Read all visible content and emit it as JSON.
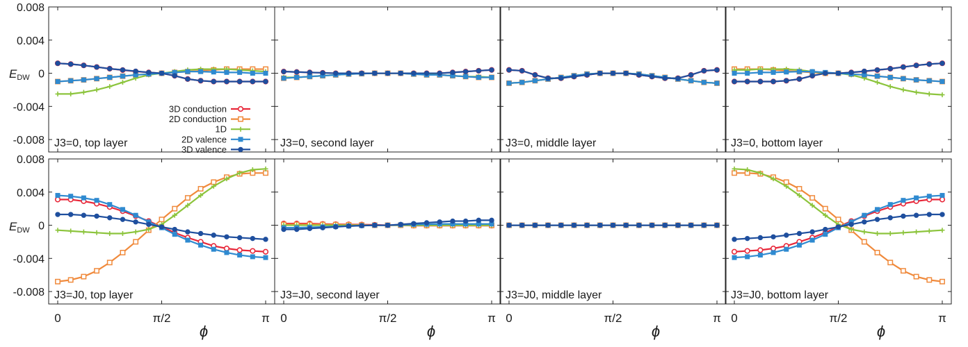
{
  "figure": {
    "ylabel_main": "E",
    "ylabel_sub": "DW",
    "phi_symbol": "ϕ",
    "legend": [
      "3D conduction",
      "2D conduction",
      "1D",
      "2D valence",
      "3D valence"
    ],
    "colors": {
      "3D conduction": "#e8283a",
      "2D conduction": "#f08a3c",
      "1D": "#8cc43c",
      "2D valence": "#2f8ad0",
      "3D valence": "#1f4f9e"
    }
  },
  "chart_data": [
    {
      "type": "line",
      "title": "J3=0, top layer",
      "xticks": [
        "0",
        "π/2",
        "π"
      ],
      "yticks": [
        "0.008",
        "0.004",
        "0",
        "-0.004",
        "-0.008"
      ],
      "xlim": [
        0,
        3.1416
      ],
      "ylim": [
        -0.0095,
        0.008
      ],
      "legend_position": "bottom-right",
      "series": [
        {
          "name": "3D conduction",
          "values": [
            0.0012,
            0.0011,
            0.00095,
            0.00075,
            0.00055,
            0.00038,
            0.00022,
            0.0001,
            0.0,
            -0.0003,
            -0.0007,
            -0.0009,
            -0.001,
            -0.001,
            -0.001,
            -0.001,
            -0.001
          ]
        },
        {
          "name": "2D conduction",
          "values": [
            -0.001,
            -0.0009,
            -0.0008,
            -0.00065,
            -0.0005,
            -0.00035,
            -0.0002,
            -0.0001,
            0.0,
            0.0001,
            0.0002,
            0.0003,
            0.0004,
            0.0005,
            0.0005,
            0.0005,
            0.0005
          ]
        },
        {
          "name": "1D",
          "values": [
            -0.0025,
            -0.0025,
            -0.0023,
            -0.002,
            -0.0016,
            -0.0011,
            -0.0006,
            -0.0002,
            0.0,
            0.0002,
            0.0004,
            0.0005,
            0.0005,
            0.0005,
            0.0004,
            0.0003,
            0.0002
          ]
        },
        {
          "name": "2D valence",
          "values": [
            -0.001,
            -0.0009,
            -0.0008,
            -0.00065,
            -0.0005,
            -0.00035,
            -0.0002,
            -0.0001,
            0.0,
            0.0001,
            0.0002,
            0.0002,
            0.00015,
            0.0001,
            0.0001,
            0.0,
            0.0
          ]
        },
        {
          "name": "3D valence",
          "values": [
            0.0012,
            0.0011,
            0.00095,
            0.00075,
            0.00055,
            0.0004,
            0.00025,
            0.0001,
            0.0,
            -0.0003,
            -0.0007,
            -0.0009,
            -0.001,
            -0.001,
            -0.001,
            -0.001,
            -0.001
          ]
        }
      ]
    },
    {
      "type": "line",
      "title": "J3=0, second layer",
      "xticks": [
        "0",
        "π/2",
        "π"
      ],
      "yticks": [],
      "xlim": [
        0,
        3.1416
      ],
      "ylim": [
        -0.0095,
        0.008
      ],
      "series": [
        {
          "name": "3D conduction",
          "values": [
            0.0002,
            0.00015,
            0.0001,
            5e-05,
            0.0,
            0.0,
            0.0,
            0.0,
            0.0,
            0.0,
            0.0,
            0.0,
            0.0,
            0.0001,
            0.0002,
            0.0003,
            0.0004
          ]
        },
        {
          "name": "2D conduction",
          "values": [
            -0.0006,
            -0.0005,
            -0.0004,
            -0.0003,
            -0.0002,
            -0.0001,
            -5e-05,
            0.0,
            0.0,
            0.0,
            -0.0001,
            -0.0002,
            -0.0002,
            -0.0003,
            -0.0004,
            -0.0005,
            -0.0005
          ]
        },
        {
          "name": "1D",
          "values": [
            -0.0005,
            -0.0005,
            -0.0004,
            -0.0003,
            -0.0002,
            -0.0001,
            -5e-05,
            0.0,
            0.0,
            0.0,
            -0.0001,
            -0.0001,
            -0.0002,
            -0.0003,
            -0.0004,
            -0.0004,
            -0.0005
          ]
        },
        {
          "name": "2D valence",
          "values": [
            -0.0006,
            -0.0005,
            -0.0004,
            -0.0003,
            -0.0002,
            -0.0001,
            -5e-05,
            0.0,
            0.0,
            0.0,
            -0.0001,
            -0.0002,
            -0.0002,
            -0.0003,
            -0.0004,
            -0.0005,
            -0.0005
          ]
        },
        {
          "name": "3D valence",
          "values": [
            0.0002,
            0.00015,
            0.0001,
            5e-05,
            0.0,
            0.0,
            0.0,
            0.0,
            0.0,
            0.0,
            0.0,
            0.0,
            0.0,
            0.0001,
            0.0002,
            0.0003,
            0.0004
          ]
        }
      ]
    },
    {
      "type": "line",
      "title": "J3=0, middle layer",
      "xticks": [
        "0",
        "π/2",
        "π"
      ],
      "yticks": [],
      "xlim": [
        0,
        3.1416
      ],
      "ylim": [
        -0.0095,
        0.008
      ],
      "series": [
        {
          "name": "3D conduction",
          "values": [
            0.0004,
            0.0003,
            -0.0002,
            -0.0006,
            -0.0006,
            -0.0004,
            -0.0002,
            0.0,
            0.0,
            0.0,
            -0.0002,
            -0.0004,
            -0.0006,
            -0.0006,
            -0.0002,
            0.0003,
            0.0004
          ]
        },
        {
          "name": "2D conduction",
          "values": [
            -0.0012,
            -0.0011,
            -0.0009,
            -0.0007,
            -0.0005,
            -0.0003,
            -0.0001,
            0.0,
            0.0,
            0.0,
            -0.0001,
            -0.0003,
            -0.0005,
            -0.0007,
            -0.0009,
            -0.0011,
            -0.0012
          ]
        },
        {
          "name": "1D",
          "values": [
            -0.0012,
            -0.0011,
            -0.0009,
            -0.0007,
            -0.0005,
            -0.0003,
            -0.0001,
            0.0,
            0.0,
            0.0,
            -0.0001,
            -0.0003,
            -0.0005,
            -0.0007,
            -0.0009,
            -0.0011,
            -0.0012
          ]
        },
        {
          "name": "2D valence",
          "values": [
            -0.0012,
            -0.0011,
            -0.0009,
            -0.0007,
            -0.0005,
            -0.0003,
            -0.0001,
            0.0,
            0.0,
            0.0,
            -0.0001,
            -0.0003,
            -0.0005,
            -0.0007,
            -0.0009,
            -0.0011,
            -0.0012
          ]
        },
        {
          "name": "3D valence",
          "values": [
            0.0004,
            0.0003,
            -0.0002,
            -0.0006,
            -0.0006,
            -0.0004,
            -0.0002,
            0.0,
            0.0,
            0.0,
            -0.0002,
            -0.0004,
            -0.0006,
            -0.0006,
            -0.0002,
            0.0003,
            0.0004
          ]
        }
      ]
    },
    {
      "type": "line",
      "title": "J3=0, bottom layer",
      "xticks": [
        "0",
        "π/2",
        "π"
      ],
      "yticks": [],
      "xlim": [
        0,
        3.1416
      ],
      "ylim": [
        -0.0095,
        0.008
      ],
      "series": [
        {
          "name": "3D conduction",
          "values": [
            -0.001,
            -0.001,
            -0.001,
            -0.001,
            -0.0009,
            -0.0007,
            -0.0003,
            0.0,
            0.0,
            0.0001,
            0.00022,
            0.00038,
            0.00055,
            0.00075,
            0.00095,
            0.0011,
            0.0012
          ]
        },
        {
          "name": "2D conduction",
          "values": [
            0.0005,
            0.0005,
            0.0005,
            0.0004,
            0.0003,
            0.0002,
            0.0001,
            0.0,
            0.0,
            -0.0001,
            -0.0002,
            -0.00035,
            -0.0005,
            -0.00065,
            -0.0008,
            -0.0009,
            -0.001
          ]
        },
        {
          "name": "1D",
          "values": [
            0.0004,
            0.0004,
            0.0005,
            0.0005,
            0.0005,
            0.0004,
            0.0002,
            0.0,
            0.0,
            -0.0002,
            -0.0006,
            -0.0011,
            -0.0016,
            -0.002,
            -0.0023,
            -0.0025,
            -0.0026
          ]
        },
        {
          "name": "2D valence",
          "values": [
            0.0,
            0.0,
            0.0001,
            0.0001,
            0.00015,
            0.0002,
            0.0002,
            0.0001,
            0.0,
            -0.0001,
            -0.0002,
            -0.00035,
            -0.0005,
            -0.00065,
            -0.0008,
            -0.0009,
            -0.001
          ]
        },
        {
          "name": "3D valence",
          "values": [
            -0.001,
            -0.001,
            -0.001,
            -0.001,
            -0.0009,
            -0.0007,
            -0.0003,
            0.0,
            0.0,
            0.0001,
            0.00025,
            0.0004,
            0.00055,
            0.00075,
            0.00095,
            0.0011,
            0.0012
          ]
        }
      ]
    },
    {
      "type": "line",
      "title": "J3=J0, top layer",
      "xticks": [
        "0",
        "π/2",
        "π"
      ],
      "yticks": [
        "0.008",
        "0.004",
        "0",
        "-0.004",
        "-0.008"
      ],
      "xlim": [
        0,
        3.1416
      ],
      "ylim": [
        -0.0095,
        0.008
      ],
      "series": [
        {
          "name": "3D conduction",
          "values": [
            0.0031,
            0.0031,
            0.0029,
            0.0026,
            0.0022,
            0.0017,
            0.0011,
            0.0005,
            -0.0002,
            -0.0009,
            -0.0015,
            -0.002,
            -0.0025,
            -0.0028,
            -0.003,
            -0.0031,
            -0.0032
          ]
        },
        {
          "name": "2D conduction",
          "values": [
            -0.0068,
            -0.0066,
            -0.0062,
            -0.0055,
            -0.0045,
            -0.0033,
            -0.002,
            -0.0006,
            0.0007,
            0.002,
            0.0033,
            0.0044,
            0.0052,
            0.0058,
            0.0062,
            0.0063,
            0.0063
          ]
        },
        {
          "name": "1D",
          "values": [
            -0.0006,
            -0.0007,
            -0.0008,
            -0.0009,
            -0.001,
            -0.001,
            -0.0008,
            -0.0005,
            0.0001,
            0.0012,
            0.0024,
            0.0036,
            0.0047,
            0.0056,
            0.0063,
            0.0067,
            0.0068
          ]
        },
        {
          "name": "2D valence",
          "values": [
            0.0036,
            0.0035,
            0.0033,
            0.003,
            0.0025,
            0.0019,
            0.0012,
            0.0004,
            -0.0003,
            -0.0011,
            -0.0018,
            -0.0024,
            -0.0029,
            -0.0033,
            -0.0036,
            -0.0038,
            -0.0039
          ]
        },
        {
          "name": "3D valence",
          "values": [
            0.0013,
            0.0013,
            0.0012,
            0.0011,
            0.0009,
            0.0007,
            0.0004,
            0.0001,
            -0.0002,
            -0.0005,
            -0.0008,
            -0.001,
            -0.0012,
            -0.0014,
            -0.0015,
            -0.0016,
            -0.0017
          ]
        }
      ]
    },
    {
      "type": "line",
      "title": "J3=J0, second layer",
      "xticks": [
        "0",
        "π/2",
        "π"
      ],
      "yticks": [],
      "xlim": [
        0,
        3.1416
      ],
      "ylim": [
        -0.0095,
        0.008
      ],
      "series": [
        {
          "name": "3D conduction",
          "values": [
            0.0002,
            0.0002,
            0.0002,
            0.00015,
            0.00012,
            0.0001,
            8e-05,
            5e-05,
            0.0,
            0.0,
            -5e-05,
            -5e-05,
            -5e-05,
            -5e-05,
            -5e-05,
            -5e-05,
            -5e-05
          ]
        },
        {
          "name": "2D conduction",
          "values": [
            0.0001,
            0.0001,
            0.0001,
            0.0001,
            8e-05,
            5e-05,
            3e-05,
            0.0,
            0.0,
            0.0,
            -3e-05,
            -3e-05,
            -3e-05,
            -3e-05,
            -3e-05,
            -3e-05,
            -3e-05
          ]
        },
        {
          "name": "1D",
          "values": [
            0.0,
            0.0,
            0.0,
            0.0,
            0.0,
            0.0,
            0.0,
            0.0,
            0.0,
            0.0,
            0.0,
            0.0,
            0.0,
            0.0,
            0.0,
            0.0,
            0.0
          ]
        },
        {
          "name": "2D valence",
          "values": [
            -0.0003,
            -0.0003,
            -0.00025,
            -0.0002,
            -0.00015,
            -0.0001,
            -5e-05,
            0.0,
            0.0,
            5e-05,
            0.0001,
            0.00012,
            0.00015,
            0.00015,
            0.00015,
            0.00015,
            0.00015
          ]
        },
        {
          "name": "3D valence",
          "values": [
            -0.0005,
            -0.0005,
            -0.0004,
            -0.0003,
            -0.0002,
            -0.0001,
            -5e-05,
            0.0,
            0.0,
            0.0001,
            0.0002,
            0.0003,
            0.0004,
            0.0005,
            0.0005,
            0.0006,
            0.0006
          ]
        }
      ]
    },
    {
      "type": "line",
      "title": "J3=J0, middle layer",
      "xticks": [
        "0",
        "π/2",
        "π"
      ],
      "yticks": [],
      "xlim": [
        0,
        3.1416
      ],
      "ylim": [
        -0.0095,
        0.008
      ],
      "series": [
        {
          "name": "3D conduction",
          "values": [
            0.0,
            0.0,
            0.0,
            0.0,
            0.0,
            0.0,
            0.0,
            0.0,
            0.0,
            0.0,
            0.0,
            0.0,
            0.0,
            0.0,
            0.0,
            0.0,
            0.0
          ]
        },
        {
          "name": "2D conduction",
          "values": [
            0.0,
            0.0,
            0.0,
            0.0,
            0.0,
            0.0,
            0.0,
            0.0,
            0.0,
            0.0,
            0.0,
            0.0,
            0.0,
            0.0,
            0.0,
            0.0,
            0.0
          ]
        },
        {
          "name": "1D",
          "values": [
            0.0,
            0.0,
            0.0,
            0.0,
            0.0,
            0.0,
            0.0,
            0.0,
            0.0,
            0.0,
            0.0,
            0.0,
            0.0,
            0.0,
            0.0,
            0.0,
            0.0
          ]
        },
        {
          "name": "2D valence",
          "values": [
            0.0,
            0.0,
            0.0,
            0.0,
            0.0,
            0.0,
            0.0,
            0.0,
            0.0,
            0.0,
            0.0,
            0.0,
            0.0,
            0.0,
            0.0,
            0.0,
            0.0
          ]
        },
        {
          "name": "3D valence",
          "values": [
            0.0,
            0.0,
            0.0,
            0.0,
            0.0,
            0.0,
            0.0,
            0.0,
            0.0,
            0.0,
            0.0,
            0.0,
            0.0,
            0.0,
            0.0,
            0.0,
            0.0
          ]
        }
      ]
    },
    {
      "type": "line",
      "title": "J3=J0, bottom layer",
      "xticks": [
        "0",
        "π/2",
        "π"
      ],
      "yticks": [],
      "xlim": [
        0,
        3.1416
      ],
      "ylim": [
        -0.0095,
        0.008
      ],
      "series": [
        {
          "name": "3D conduction",
          "values": [
            -0.0032,
            -0.0031,
            -0.003,
            -0.0028,
            -0.0025,
            -0.002,
            -0.0015,
            -0.0009,
            -0.0002,
            0.0005,
            0.0011,
            0.0017,
            0.0022,
            0.0026,
            0.0029,
            0.0031,
            0.0031
          ]
        },
        {
          "name": "2D conduction",
          "values": [
            0.0063,
            0.0063,
            0.0062,
            0.0058,
            0.0052,
            0.0044,
            0.0033,
            0.002,
            0.0007,
            -0.0006,
            -0.002,
            -0.0033,
            -0.0045,
            -0.0055,
            -0.0062,
            -0.0066,
            -0.0068
          ]
        },
        {
          "name": "1D",
          "values": [
            0.0068,
            0.0067,
            0.0063,
            0.0056,
            0.0047,
            0.0036,
            0.0024,
            0.0012,
            0.0001,
            -0.0005,
            -0.0008,
            -0.001,
            -0.001,
            -0.0009,
            -0.0008,
            -0.0007,
            -0.0006
          ]
        },
        {
          "name": "2D valence",
          "values": [
            -0.0039,
            -0.0038,
            -0.0036,
            -0.0033,
            -0.0029,
            -0.0024,
            -0.0018,
            -0.0011,
            -0.0003,
            0.0004,
            0.0012,
            0.0019,
            0.0025,
            0.003,
            0.0033,
            0.0035,
            0.0036
          ]
        },
        {
          "name": "3D valence",
          "values": [
            -0.0017,
            -0.0016,
            -0.0015,
            -0.0014,
            -0.0012,
            -0.001,
            -0.0008,
            -0.0005,
            -0.0002,
            0.0001,
            0.0004,
            0.0007,
            0.0009,
            0.0011,
            0.0012,
            0.0013,
            0.0013
          ]
        }
      ]
    }
  ]
}
